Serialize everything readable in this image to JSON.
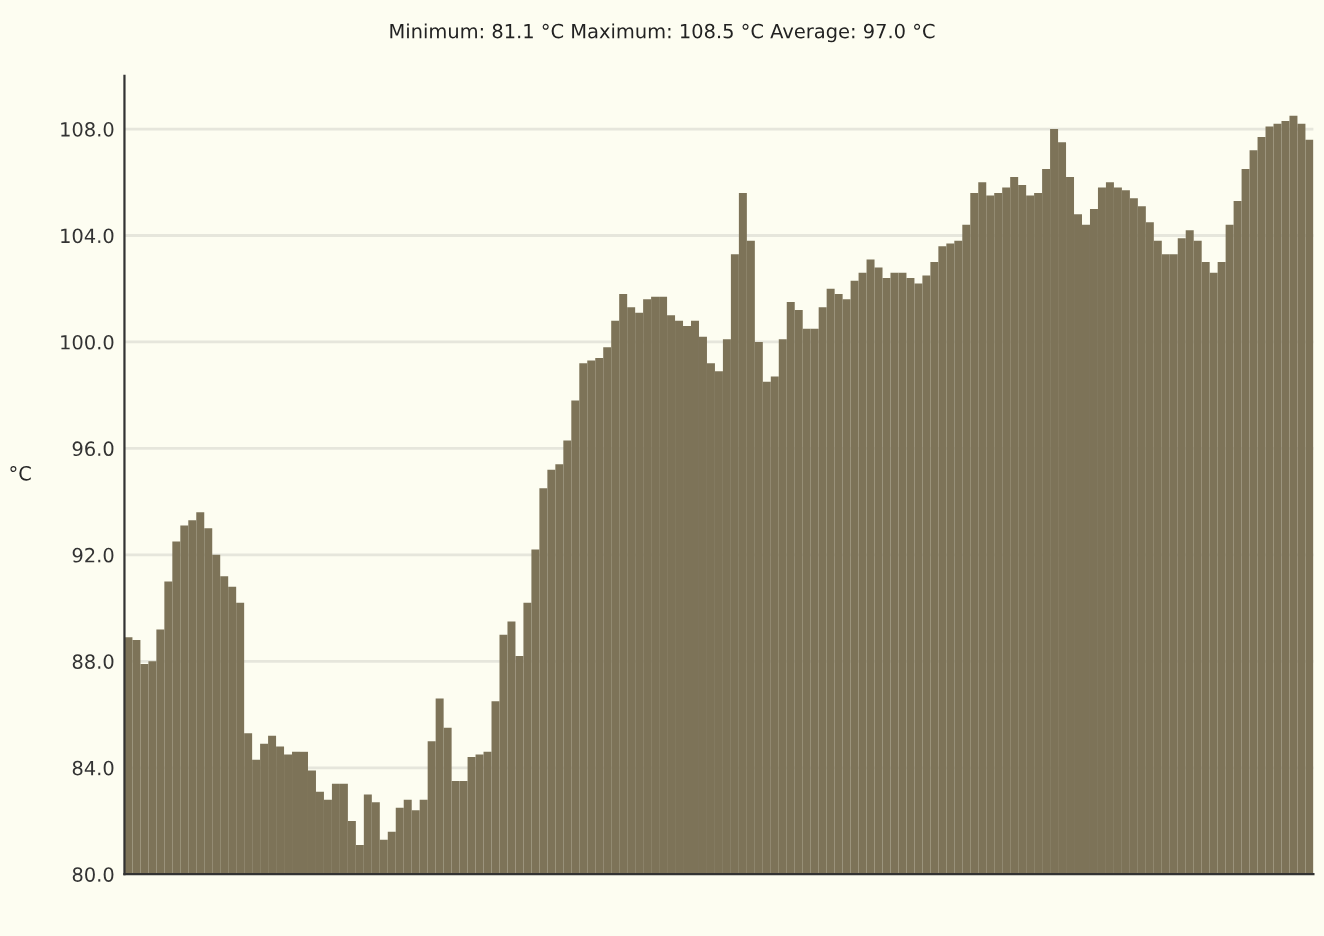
{
  "chart_data": {
    "type": "bar",
    "title": "Minimum: 81.1 °C Maximum: 108.5 °C Average: 97.0 °C",
    "ylabel": "°C",
    "categories": [
      null,
      null,
      null,
      null,
      null,
      null,
      null,
      null,
      null,
      null,
      null,
      null,
      null,
      null,
      null,
      null,
      null,
      null,
      null,
      null,
      null,
      null,
      null,
      null,
      null,
      null,
      null,
      null,
      null,
      null,
      null,
      null,
      null,
      null,
      null,
      null,
      null,
      null,
      null,
      null,
      null,
      null,
      null,
      null,
      null,
      null,
      null,
      null,
      null,
      null,
      null,
      null,
      null,
      null,
      null,
      null,
      null,
      null,
      null,
      null,
      null,
      null,
      null,
      null,
      null,
      null,
      null,
      null,
      null,
      null,
      null,
      null,
      null,
      null,
      null,
      null,
      null,
      null,
      null,
      null,
      null,
      null,
      null,
      null,
      null,
      null,
      null,
      null,
      null,
      null,
      null,
      null,
      null,
      null,
      null,
      null,
      null,
      null,
      null,
      null,
      null,
      null,
      null,
      null,
      null,
      null,
      null,
      null,
      null,
      null,
      null,
      null,
      null,
      null,
      null,
      null,
      null,
      null,
      null,
      null,
      null,
      null,
      null,
      null,
      null,
      null,
      null,
      null,
      null,
      null,
      null,
      null,
      null,
      null,
      null,
      null,
      null,
      null,
      null,
      null,
      null,
      null,
      null,
      null,
      null,
      null,
      null,
      null,
      null
    ],
    "values": [
      88.9,
      88.8,
      87.9,
      88.0,
      89.2,
      91.0,
      92.5,
      93.1,
      93.3,
      93.6,
      93.0,
      92.0,
      91.2,
      90.8,
      90.2,
      85.3,
      84.3,
      84.9,
      85.2,
      84.8,
      84.5,
      84.6,
      84.6,
      83.9,
      83.1,
      82.8,
      83.4,
      83.4,
      82.0,
      81.1,
      83.0,
      82.7,
      81.3,
      81.6,
      82.5,
      82.8,
      82.4,
      82.8,
      85.0,
      86.6,
      85.5,
      83.5,
      83.5,
      84.4,
      84.5,
      84.6,
      86.5,
      89.0,
      89.5,
      88.2,
      90.2,
      92.2,
      94.5,
      95.2,
      95.4,
      96.3,
      97.8,
      99.2,
      99.3,
      99.4,
      99.8,
      100.8,
      101.8,
      101.3,
      101.1,
      101.6,
      101.7,
      101.7,
      101.0,
      100.8,
      100.6,
      100.8,
      100.2,
      99.2,
      98.9,
      100.1,
      103.3,
      105.6,
      103.8,
      100.0,
      98.5,
      98.7,
      100.1,
      101.5,
      101.2,
      100.5,
      100.5,
      101.3,
      102.0,
      101.8,
      101.6,
      102.3,
      102.6,
      103.1,
      102.8,
      102.4,
      102.6,
      102.6,
      102.4,
      102.2,
      102.5,
      103.0,
      103.6,
      103.7,
      103.8,
      104.4,
      105.6,
      106.0,
      105.5,
      105.6,
      105.8,
      106.2,
      105.9,
      105.5,
      105.6,
      106.5,
      108.0,
      107.5,
      106.2,
      104.8,
      104.4,
      105.0,
      105.8,
      106.0,
      105.8,
      105.7,
      105.4,
      105.1,
      104.5,
      103.8,
      103.3,
      103.3,
      103.9,
      104.2,
      103.8,
      103.0,
      102.6,
      103.0,
      104.4,
      105.3,
      106.5,
      107.2,
      107.7,
      108.1,
      108.2,
      108.3,
      108.5,
      108.2,
      107.6
    ],
    "color": "#7d7358",
    "ylim": [
      80,
      110
    ],
    "yticks": [
      {
        "value": 80,
        "label": "80.0"
      },
      {
        "value": 84,
        "label": "84.0"
      },
      {
        "value": 88,
        "label": "88.0"
      },
      {
        "value": 92,
        "label": "92.0"
      },
      {
        "value": 96,
        "label": "96.0"
      },
      {
        "value": 100,
        "label": "100.0"
      },
      {
        "value": 104,
        "label": "104.0"
      },
      {
        "value": 108,
        "label": "108.0"
      }
    ],
    "grid": "y"
  }
}
